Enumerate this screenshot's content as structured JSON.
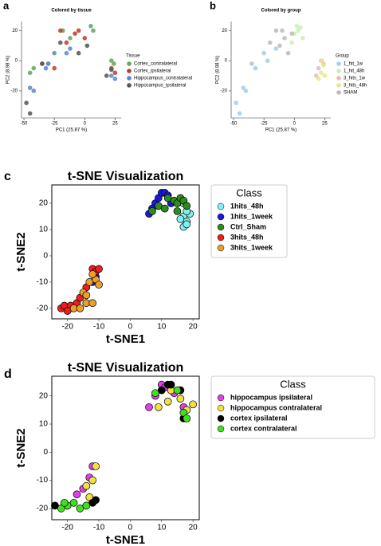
{
  "chart_data": [
    {
      "type": "scatter",
      "panel_label": "a",
      "title": "Colored by tissue",
      "x_label": "PC1 (25.87 %)",
      "y_label": "PC2 (8.98 %)",
      "legend_title": "Tissue",
      "legend": "right",
      "xlim": [
        -52,
        30
      ],
      "ylim": [
        -38,
        26
      ],
      "xticks": [
        -50,
        -25,
        0,
        25
      ],
      "yticks": [
        -20,
        0,
        20
      ],
      "series": [
        {
          "name": "Cortex_contralateral",
          "color": "#5fa65f",
          "x": [
            -45,
            -42,
            -30,
            -18,
            -12,
            5,
            7,
            22,
            24
          ],
          "y": [
            -8,
            -5,
            -2,
            20,
            15,
            23,
            20,
            0,
            -2
          ]
        },
        {
          "name": "Cortex_ipsilateral",
          "color": "#c0392b",
          "x": [
            -25,
            -20,
            -15,
            -8,
            -5,
            0,
            22,
            25,
            -35
          ],
          "y": [
            -5,
            20,
            12,
            18,
            20,
            15,
            -5,
            -8,
            -2
          ]
        },
        {
          "name": "Hippocampus_contralateral",
          "color": "#5b84d1",
          "x": [
            -45,
            -42,
            -32,
            -25,
            -15,
            -12,
            22,
            25,
            -30
          ],
          "y": [
            -18,
            -20,
            -5,
            5,
            5,
            8,
            -10,
            -12,
            -2
          ]
        },
        {
          "name": "Hippocampus_ipsilateral",
          "color": "#555555",
          "x": [
            -48,
            -45,
            -35,
            -20,
            -5,
            18,
            22,
            2
          ],
          "y": [
            -28,
            -35,
            -2,
            12,
            5,
            -10,
            -6,
            10
          ]
        }
      ]
    },
    {
      "type": "scatter",
      "panel_label": "b",
      "title": "Colored by group",
      "x_label": "PC1 (25.87 %)",
      "y_label": "PC2 (8.98 %)",
      "legend_title": "Group",
      "legend": "right",
      "xlim": [
        -52,
        30
      ],
      "ylim": [
        -38,
        26
      ],
      "xticks": [
        -50,
        -25,
        0,
        25
      ],
      "yticks": [
        -20,
        0,
        20
      ],
      "series": [
        {
          "name": "1_hit_1w",
          "color": "#a6cdea",
          "x": [
            -48,
            -45,
            -42,
            -40,
            -32,
            -25,
            -22,
            -15
          ],
          "y": [
            -28,
            -35,
            -18,
            -20,
            -5,
            5,
            0,
            8
          ]
        },
        {
          "name": "1_hit_48h",
          "color": "#c8f0b8",
          "x": [
            0,
            2,
            3,
            5,
            7,
            -2
          ],
          "y": [
            18,
            23,
            20,
            22,
            15,
            12
          ]
        },
        {
          "name": "3_hits_1w",
          "color": "#e8b8c8",
          "x": [
            18,
            20,
            22,
            24
          ],
          "y": [
            -10,
            -5,
            0,
            -2
          ]
        },
        {
          "name": "3_hits_48h",
          "color": "#e6e88a",
          "x": [
            20,
            22,
            24,
            25,
            23
          ],
          "y": [
            -12,
            -8,
            -3,
            -10,
            0
          ]
        },
        {
          "name": "SHAM",
          "color": "#bbbbbb",
          "x": [
            -35,
            -20,
            -15,
            -10,
            -8,
            -5,
            -2,
            -12
          ],
          "y": [
            -2,
            12,
            20,
            20,
            15,
            5,
            18,
            10
          ]
        }
      ]
    },
    {
      "type": "scatter",
      "panel_label": "c",
      "title": "t-SNE Visualization",
      "x_label": "t-SNE1",
      "y_label": "t-SNE2",
      "legend_title": "Class",
      "legend": "right",
      "xlim": [
        -25,
        22
      ],
      "ylim": [
        -24,
        27
      ],
      "xticks": [
        -20,
        -10,
        0,
        10,
        20
      ],
      "yticks": [
        -20,
        -10,
        0,
        10,
        20
      ],
      "series": [
        {
          "name": "1hits_48h",
          "color": "#80f0f0",
          "x": [
            17,
            18,
            17,
            18,
            16,
            19,
            18,
            17
          ],
          "y": [
            15,
            13,
            11,
            12,
            14,
            16,
            17,
            20
          ]
        },
        {
          "name": "1hits_1week",
          "color": "#1a1adb",
          "x": [
            8,
            9,
            10,
            11,
            12,
            7,
            6,
            13,
            -11,
            -12
          ],
          "y": [
            20,
            22,
            24,
            24,
            23,
            18,
            16,
            20,
            -8,
            -10
          ]
        },
        {
          "name": "Ctrl_Sham",
          "color": "#2e8b1e",
          "x": [
            7,
            9,
            12,
            14,
            15,
            16,
            17,
            18,
            15,
            11
          ],
          "y": [
            17,
            19,
            22,
            21,
            20,
            22,
            21,
            19,
            17,
            18
          ]
        },
        {
          "name": "3hits_48h",
          "color": "#e8211c",
          "x": [
            -22,
            -21,
            -19,
            -17,
            -16,
            -14,
            -12,
            -11,
            -10,
            -20
          ],
          "y": [
            -20,
            -19,
            -19,
            -18,
            -16,
            -12,
            -5,
            -6,
            -5,
            -21
          ]
        },
        {
          "name": "3hits_1week",
          "color": "#e9a030",
          "x": [
            -18,
            -16,
            -14,
            -12,
            -15,
            -13,
            -11,
            -10,
            -14,
            -12
          ],
          "y": [
            -20,
            -20,
            -18,
            -18,
            -14,
            -10,
            -9,
            -11,
            -15,
            -7
          ]
        }
      ]
    },
    {
      "type": "scatter",
      "panel_label": "d",
      "title": "t-SNE Visualization",
      "x_label": "t-SNE1",
      "y_label": "t-SNE2",
      "legend_title": "Class",
      "legend": "right",
      "xlim": [
        -25,
        22
      ],
      "ylim": [
        -24,
        27
      ],
      "xticks": [
        -20,
        -10,
        0,
        10,
        20
      ],
      "yticks": [
        -20,
        -10,
        0,
        10,
        20
      ],
      "series": [
        {
          "name": "hippocampus ipsilateral",
          "color": "#e040e8",
          "x": [
            6,
            8,
            10,
            11,
            14,
            17,
            -12,
            -13,
            -15,
            -17
          ],
          "y": [
            16,
            20,
            24,
            23,
            21,
            16,
            -5,
            -9,
            -13,
            -15
          ]
        },
        {
          "name": "hippocampus contralateral",
          "color": "#f0e040",
          "x": [
            9,
            12,
            13,
            16,
            18,
            20,
            -11,
            -12,
            -14,
            -13
          ],
          "y": [
            16,
            18,
            22,
            19,
            15,
            17,
            -5,
            -10,
            -12,
            -16
          ]
        },
        {
          "name": "cortex ipsilateral",
          "color": "#000000",
          "x": [
            10,
            12,
            13,
            17,
            -24,
            -11,
            -12,
            16
          ],
          "y": [
            22,
            24,
            24,
            12,
            -19,
            -17,
            -18,
            22
          ]
        },
        {
          "name": "cortex contralateral",
          "color": "#40e020",
          "x": [
            8,
            15,
            17,
            18,
            -22,
            -20,
            -18,
            -16,
            -14,
            -21
          ],
          "y": [
            21,
            22,
            14,
            12,
            -20,
            -19,
            -18,
            -20,
            -19,
            -18
          ]
        }
      ]
    }
  ]
}
